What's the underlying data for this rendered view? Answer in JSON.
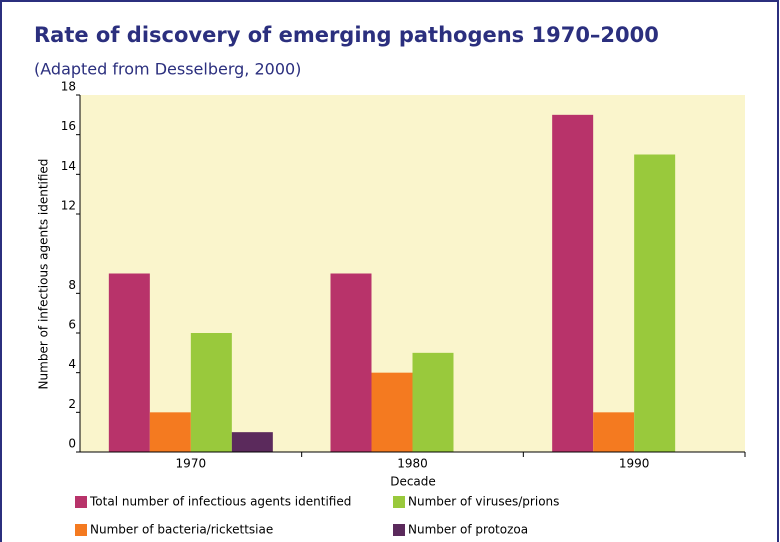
{
  "chart_data": {
    "type": "bar",
    "title": "Rate of discovery of emerging pathogens 1970–2000",
    "subtitle": "(Adapted from Desselberg, 2000)",
    "x_label": "Decade",
    "y_label": "Number of infectious agents identified",
    "categories": [
      "1970",
      "1980",
      "1990"
    ],
    "series": [
      {
        "name": "Total number of infectious agents identified",
        "color": "#b8336a",
        "values": [
          9,
          9,
          17
        ]
      },
      {
        "name": "Number of bacteria/rickettsiae",
        "color": "#f47a20",
        "values": [
          2,
          4,
          2
        ]
      },
      {
        "name": "Number of viruses/prions",
        "color": "#99c93c",
        "values": [
          6,
          5,
          15
        ]
      },
      {
        "name": "Number of protozoa",
        "color": "#5b2a5c",
        "values": [
          1,
          null,
          null
        ]
      }
    ],
    "ylim": [
      0,
      18
    ],
    "yticks": [
      0,
      2,
      4,
      6,
      8,
      12,
      14,
      16,
      18
    ],
    "plot_background": "#faf5cc",
    "grid": false
  }
}
